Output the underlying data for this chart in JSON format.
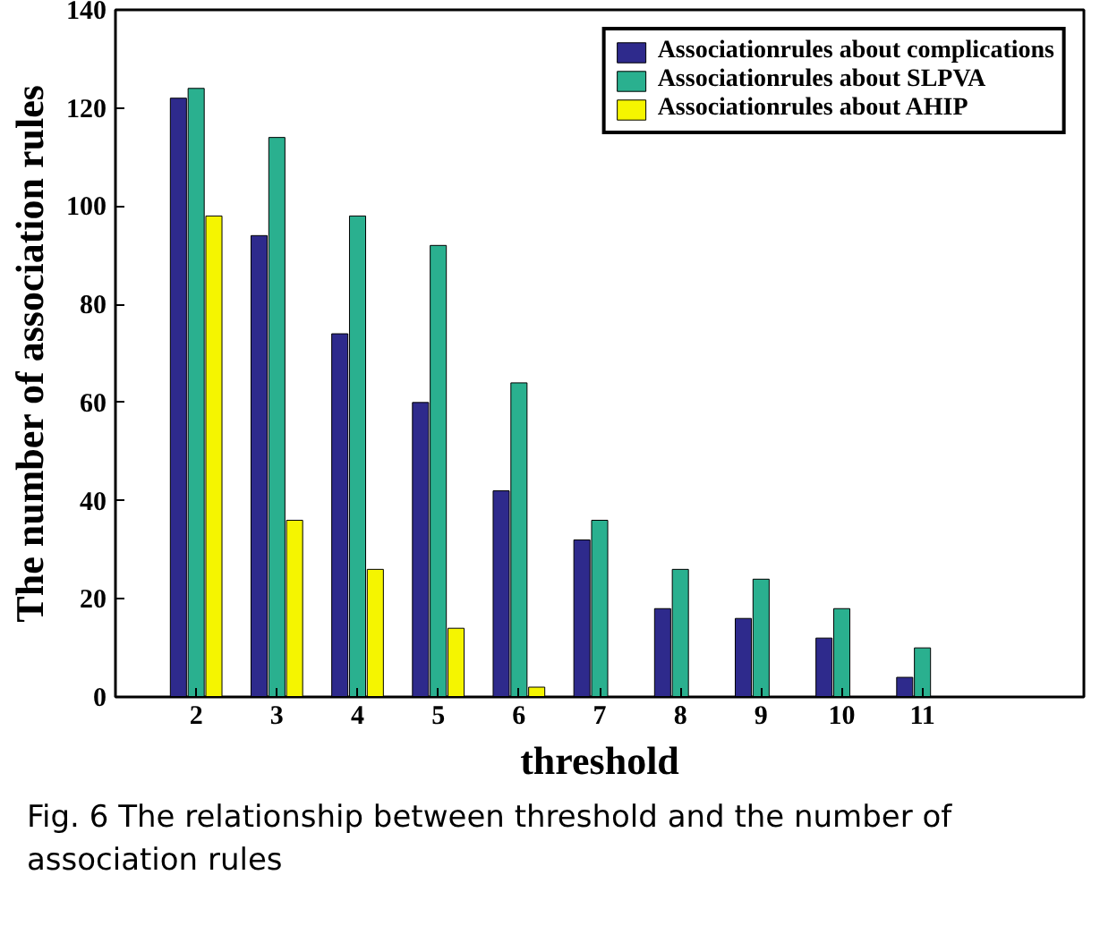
{
  "chart_data": {
    "type": "bar",
    "xlabel": "threshold",
    "ylabel": "The number of association rules",
    "x": [
      2,
      3,
      4,
      5,
      6,
      7,
      8,
      9,
      10,
      11
    ],
    "xlim": [
      1,
      13
    ],
    "xticks": [
      2,
      3,
      4,
      5,
      6,
      7,
      8,
      9,
      10,
      11
    ],
    "ylim": [
      0,
      140
    ],
    "yticks": [
      0,
      20,
      40,
      60,
      80,
      100,
      120,
      140
    ],
    "series": [
      {
        "name": "Associationrules about complications",
        "color": "#2e2a8c",
        "values": [
          122,
          94,
          74,
          60,
          42,
          32,
          18,
          16,
          12,
          4
        ]
      },
      {
        "name": "Associationrules about SLPVA",
        "color": "#2ab08f",
        "values": [
          124,
          114,
          98,
          92,
          64,
          36,
          26,
          24,
          18,
          10
        ]
      },
      {
        "name": "Associationrules about AHIP",
        "color": "#f5f500",
        "values": [
          98,
          36,
          26,
          14,
          2,
          null,
          null,
          null,
          null,
          null
        ]
      }
    ],
    "legend": "top right",
    "grid": false,
    "annotations": [
      "Fig. 6  The relationship between threshold and the number of association rules"
    ]
  }
}
